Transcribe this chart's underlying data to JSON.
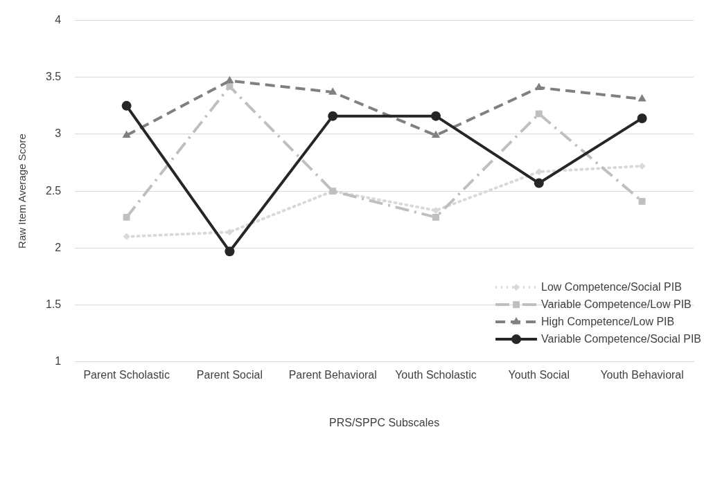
{
  "chart_data": {
    "type": "line",
    "xlabel": "PRS/SPPC Subscales",
    "ylabel": "Raw Item Average Score",
    "categories": [
      "Parent Scholastic",
      "Parent Social",
      "Parent Behavioral",
      "Youth Scholastic",
      "Youth Social",
      "Youth Behavioral"
    ],
    "ylim": [
      1,
      4
    ],
    "yticks": [
      1,
      1.5,
      2,
      2.5,
      3,
      3.5,
      4
    ],
    "grid": "y",
    "legend": "bottom right",
    "series": [
      {
        "name": "Low Competence/Social PIB",
        "color": "#d9d9d9",
        "marker": "diamond",
        "line_style": "dotted",
        "values": [
          2.1,
          2.14,
          2.5,
          2.33,
          2.67,
          2.72
        ]
      },
      {
        "name": "Variable Competence/Low PIB",
        "color": "#bfbfbf",
        "marker": "square",
        "line_style": "dashdot",
        "values": [
          2.27,
          3.42,
          2.5,
          2.27,
          3.18,
          2.41
        ]
      },
      {
        "name": "High Competence/Low PIB",
        "color": "#808080",
        "marker": "triangle",
        "line_style": "dashed",
        "values": [
          2.99,
          3.47,
          3.37,
          2.99,
          3.41,
          3.31
        ]
      },
      {
        "name": "Variable Competence/Social PIB",
        "color": "#262626",
        "marker": "circle",
        "line_style": "solid",
        "values": [
          3.25,
          1.97,
          3.16,
          3.16,
          2.57,
          3.14
        ]
      }
    ]
  }
}
